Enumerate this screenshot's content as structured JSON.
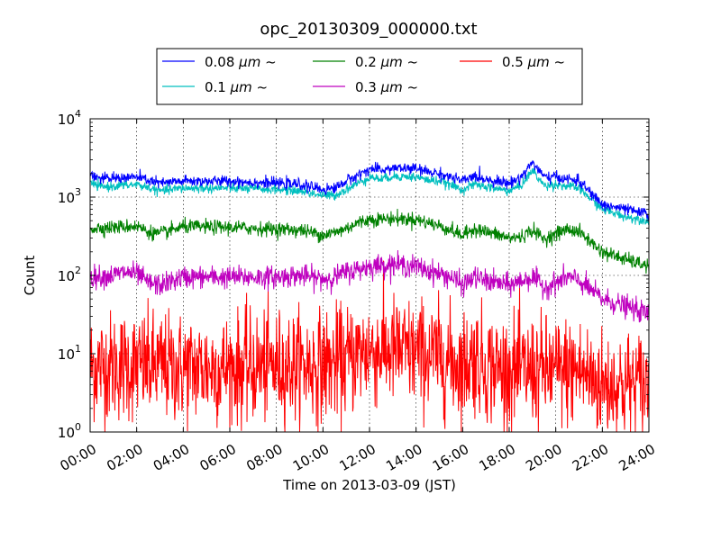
{
  "chart_data": {
    "type": "line",
    "title": "opc_20130309_000000.txt",
    "xlabel": "Time on 2013-03-09 (JST)",
    "ylabel": "Count",
    "yscale": "log",
    "ylim": [
      1,
      10000
    ],
    "xlim": [
      "00:00",
      "24:00"
    ],
    "x_tick_labels": [
      "00:00",
      "02:00",
      "04:00",
      "06:00",
      "08:00",
      "10:00",
      "12:00",
      "14:00",
      "16:00",
      "18:00",
      "20:00",
      "22:00",
      "24:00"
    ],
    "y_ticks": [
      {
        "value": 1,
        "base": "10",
        "exp": "0"
      },
      {
        "value": 10,
        "base": "10",
        "exp": "1"
      },
      {
        "value": 100,
        "base": "10",
        "exp": "2"
      },
      {
        "value": 1000,
        "base": "10",
        "exp": "3"
      },
      {
        "value": 10000,
        "base": "10",
        "exp": "4"
      }
    ],
    "grid": true,
    "legend": "top-center",
    "series": [
      {
        "name": "0.08 μm ~",
        "label_prefix": "0.08",
        "label_unit": "μm",
        "label_suffix": "~",
        "color": "#0000ff",
        "jitter": 0.035,
        "x": [
          0,
          0.5,
          1,
          2,
          3,
          4,
          6,
          8,
          9,
          10,
          10.5,
          11,
          11.5,
          12,
          12.5,
          13,
          14,
          14.5,
          15,
          16,
          16.5,
          17,
          18,
          18.5,
          19,
          19.5,
          20,
          21,
          22,
          23,
          24
        ],
        "y": [
          2000,
          1700,
          1750,
          1800,
          1500,
          1600,
          1600,
          1500,
          1450,
          1250,
          1300,
          1600,
          1900,
          2300,
          2200,
          2350,
          2300,
          2100,
          2000,
          1600,
          1850,
          1700,
          1500,
          1800,
          2800,
          1800,
          1800,
          1600,
          800,
          700,
          600
        ]
      },
      {
        "name": "0.1 μm ~",
        "label_prefix": "0.1",
        "label_unit": "μm",
        "label_suffix": "~",
        "color": "#00bfbf",
        "jitter": 0.03,
        "x": [
          0,
          0.5,
          1,
          2,
          3,
          4,
          6,
          8,
          9,
          10,
          10.5,
          11,
          11.5,
          12,
          12.5,
          13,
          14,
          14.5,
          15,
          16,
          16.5,
          17,
          18,
          18.5,
          19,
          19.5,
          20,
          21,
          22,
          23,
          24
        ],
        "y": [
          1500,
          1350,
          1380,
          1450,
          1200,
          1300,
          1300,
          1250,
          1200,
          1050,
          1050,
          1250,
          1500,
          1800,
          1700,
          1850,
          1800,
          1650,
          1600,
          1250,
          1450,
          1350,
          1200,
          1400,
          2200,
          1400,
          1450,
          1300,
          700,
          560,
          500
        ]
      },
      {
        "name": "0.2 μm ~",
        "label_prefix": "0.2",
        "label_unit": "μm",
        "label_suffix": "~",
        "color": "#008000",
        "jitter": 0.045,
        "x": [
          0,
          1,
          2,
          2.5,
          3,
          4,
          6,
          8,
          9,
          10,
          10.5,
          11,
          11.5,
          12,
          13,
          14,
          15,
          15.5,
          16,
          16.5,
          17,
          18,
          18.5,
          19,
          19.5,
          20,
          20.5,
          21,
          22,
          23,
          24
        ],
        "y": [
          400,
          410,
          430,
          360,
          340,
          420,
          410,
          390,
          380,
          330,
          350,
          400,
          470,
          520,
          530,
          520,
          430,
          380,
          320,
          400,
          360,
          300,
          310,
          380,
          290,
          340,
          390,
          360,
          200,
          160,
          130
        ]
      },
      {
        "name": "0.3 μm ~",
        "label_prefix": "0.3",
        "label_unit": "μm",
        "label_suffix": "~",
        "color": "#bf00bf",
        "jitter": 0.07,
        "x": [
          0,
          1,
          1.5,
          2,
          2.5,
          3,
          4,
          6,
          8,
          9,
          10,
          10.5,
          11,
          11.5,
          12,
          13,
          14,
          15,
          15.5,
          16,
          16.5,
          17,
          18,
          18.5,
          19,
          19.5,
          20,
          20.5,
          21,
          22,
          23,
          24
        ],
        "y": [
          95,
          100,
          110,
          105,
          80,
          75,
          95,
          95,
          95,
          100,
          90,
          95,
          110,
          120,
          130,
          140,
          130,
          105,
          95,
          75,
          95,
          85,
          75,
          85,
          95,
          70,
          80,
          95,
          85,
          50,
          40,
          32
        ]
      },
      {
        "name": "0.5 μm ~",
        "label_prefix": "0.5",
        "label_unit": "μm",
        "label_suffix": "~",
        "color": "#ff0000",
        "jitter": 0.35,
        "x": [
          0,
          2,
          4,
          6,
          8,
          10,
          11,
          11.5,
          12,
          13,
          14,
          15,
          16,
          16.5,
          17,
          18,
          19,
          20,
          21,
          22,
          23,
          24
        ],
        "y": [
          7,
          7,
          6.5,
          6.5,
          7,
          7,
          8,
          10,
          11,
          11,
          10,
          9,
          7,
          9,
          7,
          6,
          6,
          6,
          6,
          4,
          4,
          4
        ]
      }
    ]
  }
}
